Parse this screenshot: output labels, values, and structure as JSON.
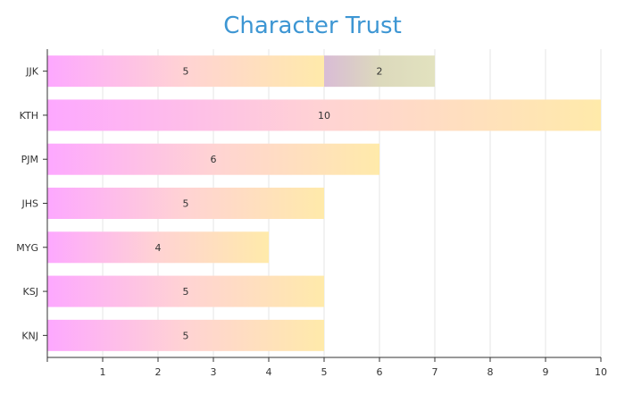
{
  "chart_data": {
    "type": "bar",
    "orientation": "horizontal",
    "stacked": true,
    "title": "Character Trust",
    "xlabel": "",
    "ylabel": "",
    "categories": [
      "JJK",
      "KTH",
      "PJM",
      "JHS",
      "MYG",
      "KSJ",
      "KNJ"
    ],
    "series": [
      {
        "values": [
          5,
          10,
          6,
          5,
          4,
          5,
          5
        ],
        "gradient": [
          "#fda8ff",
          "#ffd3d3",
          "#ffeaaa"
        ]
      },
      {
        "values": [
          2,
          0,
          0,
          0,
          0,
          0,
          0
        ],
        "gradient": [
          "#d9bcd6",
          "#dcd9bc",
          "#e2e2bf"
        ]
      }
    ],
    "xlim": [
      0,
      10
    ],
    "xticks": [
      1,
      2,
      3,
      4,
      5,
      6,
      7,
      8,
      9,
      10
    ],
    "grid": true,
    "legend": "none",
    "data_labels": true,
    "title_color": "#3d96d3"
  }
}
